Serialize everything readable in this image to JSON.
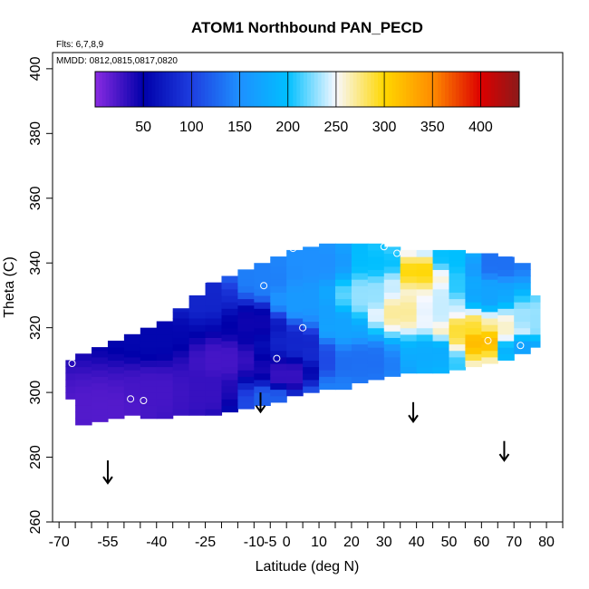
{
  "chart_data": {
    "type": "heatmap",
    "title": "ATOM1 Northbound PAN_PECD",
    "flights_note": "Flts: 6,7,8,9",
    "dates_note": "MMDD: 0812,0815,0817,0820",
    "xlabel": "Latitude (deg N)",
    "ylabel": "Theta (C)",
    "xlim": [
      -72,
      85
    ],
    "ylim": [
      260,
      405
    ],
    "x_ticks_major": [
      -70,
      -55,
      -40,
      -25,
      -10,
      -5,
      0,
      10,
      20,
      30,
      40,
      50,
      60,
      70,
      80
    ],
    "x_tick_labels": [
      "-70",
      "-55",
      "-40",
      "-25",
      "-10",
      "-5",
      "0",
      "10",
      "20",
      "30",
      "40",
      "50",
      "60",
      "70",
      "80"
    ],
    "x_ticks_minor": [
      -65,
      -60,
      -50,
      -45,
      -35,
      -30,
      -20,
      -15,
      5,
      15,
      25,
      35,
      45,
      55,
      65,
      75,
      85
    ],
    "y_ticks": [
      260,
      280,
      300,
      320,
      340,
      360,
      380,
      400
    ],
    "y_tick_labels": [
      "260",
      "280",
      "300",
      "320",
      "340",
      "360",
      "380",
      "400"
    ],
    "colorbar": {
      "range": [
        0,
        440
      ],
      "ticks": [
        50,
        100,
        150,
        200,
        250,
        300,
        350,
        400
      ],
      "tick_labels": [
        "50",
        "100",
        "150",
        "200",
        "250",
        "300",
        "350",
        "400"
      ],
      "stops": [
        {
          "value": 0,
          "color": "#8a2be2"
        },
        {
          "value": 50,
          "color": "#0000aa"
        },
        {
          "value": 100,
          "color": "#1e3ee0"
        },
        {
          "value": 150,
          "color": "#1e90ff"
        },
        {
          "value": 200,
          "color": "#00bfff"
        },
        {
          "value": 250,
          "color": "#f8f8ff"
        },
        {
          "value": 300,
          "color": "#ffd700"
        },
        {
          "value": 350,
          "color": "#ff8c00"
        },
        {
          "value": 400,
          "color": "#dd0000"
        },
        {
          "value": 440,
          "color": "#8b1a1a"
        }
      ]
    },
    "field": {
      "lat_edges": [
        -68,
        -65,
        -60,
        -55,
        -50,
        -45,
        -40,
        -35,
        -30,
        -25,
        -20,
        -15,
        -10,
        -5,
        0,
        5,
        10,
        15,
        20,
        25,
        30,
        35,
        40,
        45,
        50,
        55,
        60,
        65,
        70,
        75,
        78
      ],
      "top_theta": [
        310,
        312,
        314,
        316,
        318,
        320,
        322,
        326,
        330,
        334,
        336,
        338,
        340,
        342,
        344,
        345,
        346,
        346,
        346,
        346,
        345,
        344,
        344,
        344,
        344,
        343,
        343,
        342,
        340,
        330
      ],
      "bottom_theta": [
        298,
        290,
        291,
        292,
        293,
        292,
        292,
        293,
        293,
        293,
        294,
        295,
        296,
        297,
        299,
        300,
        301,
        301,
        303,
        304,
        305,
        306,
        306,
        306,
        307,
        308,
        309,
        310,
        312,
        314
      ],
      "anchors": [
        {
          "lat": -55,
          "theta": 295,
          "value": 20
        },
        {
          "lat": -40,
          "theta": 300,
          "value": 25
        },
        {
          "lat": -40,
          "theta": 318,
          "value": 55
        },
        {
          "lat": -25,
          "theta": 300,
          "value": 30
        },
        {
          "lat": -20,
          "theta": 310,
          "value": 25
        },
        {
          "lat": -25,
          "theta": 330,
          "value": 80
        },
        {
          "lat": -10,
          "theta": 322,
          "value": 45
        },
        {
          "lat": -8,
          "theta": 335,
          "value": 140
        },
        {
          "lat": -5,
          "theta": 298,
          "value": 120
        },
        {
          "lat": 0,
          "theta": 305,
          "value": 30
        },
        {
          "lat": 5,
          "theta": 316,
          "value": 80
        },
        {
          "lat": 3,
          "theta": 328,
          "value": 160
        },
        {
          "lat": 10,
          "theta": 340,
          "value": 150
        },
        {
          "lat": 15,
          "theta": 300,
          "value": 140
        },
        {
          "lat": 15,
          "theta": 320,
          "value": 170
        },
        {
          "lat": 25,
          "theta": 310,
          "value": 130
        },
        {
          "lat": 25,
          "theta": 330,
          "value": 230
        },
        {
          "lat": 30,
          "theta": 340,
          "value": 200
        },
        {
          "lat": 35,
          "theta": 325,
          "value": 270
        },
        {
          "lat": 40,
          "theta": 338,
          "value": 300
        },
        {
          "lat": 45,
          "theta": 312,
          "value": 180
        },
        {
          "lat": 48,
          "theta": 325,
          "value": 240
        },
        {
          "lat": 50,
          "theta": 342,
          "value": 200
        },
        {
          "lat": 55,
          "theta": 320,
          "value": 290
        },
        {
          "lat": 60,
          "theta": 316,
          "value": 320
        },
        {
          "lat": 62,
          "theta": 330,
          "value": 170
        },
        {
          "lat": 65,
          "theta": 340,
          "value": 130
        },
        {
          "lat": 68,
          "theta": 320,
          "value": 260
        },
        {
          "lat": 72,
          "theta": 314,
          "value": 170
        },
        {
          "lat": 75,
          "theta": 322,
          "value": 230
        }
      ]
    },
    "sample_points": [
      {
        "lat": -66,
        "theta": 309
      },
      {
        "lat": -48,
        "theta": 298
      },
      {
        "lat": -44,
        "theta": 297.5
      },
      {
        "lat": -25,
        "theta": 335
      },
      {
        "lat": -7,
        "theta": 333
      },
      {
        "lat": -3,
        "theta": 310.5
      },
      {
        "lat": 2,
        "theta": 344.5
      },
      {
        "lat": 5,
        "theta": 320
      },
      {
        "lat": 8,
        "theta": 346.5
      },
      {
        "lat": 30,
        "theta": 345
      },
      {
        "lat": 34,
        "theta": 343
      },
      {
        "lat": 62,
        "theta": 316
      },
      {
        "lat": 70,
        "theta": 343
      },
      {
        "lat": 72,
        "theta": 314.5
      }
    ],
    "arrows": [
      {
        "lat": -55,
        "theta_top": 279,
        "theta_bottom": 272
      },
      {
        "lat": -8,
        "theta_top": 300,
        "theta_bottom": 294
      },
      {
        "lat": 39,
        "theta_top": 297,
        "theta_bottom": 291
      },
      {
        "lat": 67,
        "theta_top": 285,
        "theta_bottom": 279
      }
    ]
  }
}
